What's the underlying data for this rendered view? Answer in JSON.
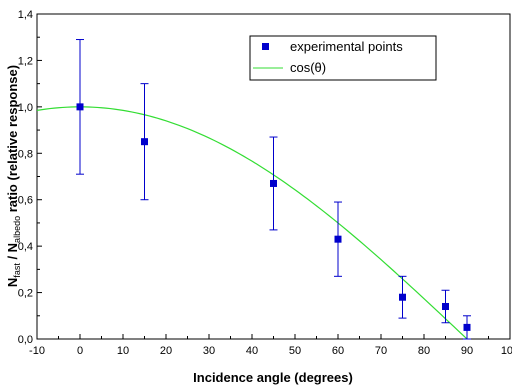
{
  "chart_data": {
    "type": "scatter",
    "xlabel": "Incidence angle (degrees)",
    "ylabel": {
      "n1": "N",
      "sub1": "fast",
      "sep": " / N",
      "sub2": "albedo",
      "rest": " ratio (relative response)"
    },
    "xlim": [
      -10,
      100
    ],
    "ylim": [
      0.0,
      1.4
    ],
    "x_ticks": [
      "-10",
      "0",
      "10",
      "20",
      "30",
      "40",
      "50",
      "60",
      "70",
      "80",
      "90",
      "100"
    ],
    "y_ticks": [
      "0,0",
      "0,2",
      "0,4",
      "0,6",
      "0,8",
      "1,0",
      "1,2",
      "1,4"
    ],
    "legend_position": "top-right",
    "series": [
      {
        "name": "experimental points",
        "kind": "points-with-error-bars",
        "color": "#0000cc",
        "points": [
          {
            "x": 0,
            "y": 1.0,
            "yerr_low": 0.71,
            "yerr_high": 1.29
          },
          {
            "x": 15,
            "y": 0.85,
            "yerr_low": 0.6,
            "yerr_high": 1.1
          },
          {
            "x": 45,
            "y": 0.67,
            "yerr_low": 0.47,
            "yerr_high": 0.87
          },
          {
            "x": 60,
            "y": 0.43,
            "yerr_low": 0.27,
            "yerr_high": 0.59
          },
          {
            "x": 75,
            "y": 0.18,
            "yerr_low": 0.09,
            "yerr_high": 0.27
          },
          {
            "x": 85,
            "y": 0.14,
            "yerr_low": 0.07,
            "yerr_high": 0.21
          },
          {
            "x": 90,
            "y": 0.05,
            "yerr_low": 0.0,
            "yerr_high": 0.1
          }
        ]
      },
      {
        "name": "cos(θ)",
        "kind": "curve",
        "function": "cos",
        "x_range": [
          -10,
          90
        ],
        "color": "#33dd33"
      }
    ]
  }
}
